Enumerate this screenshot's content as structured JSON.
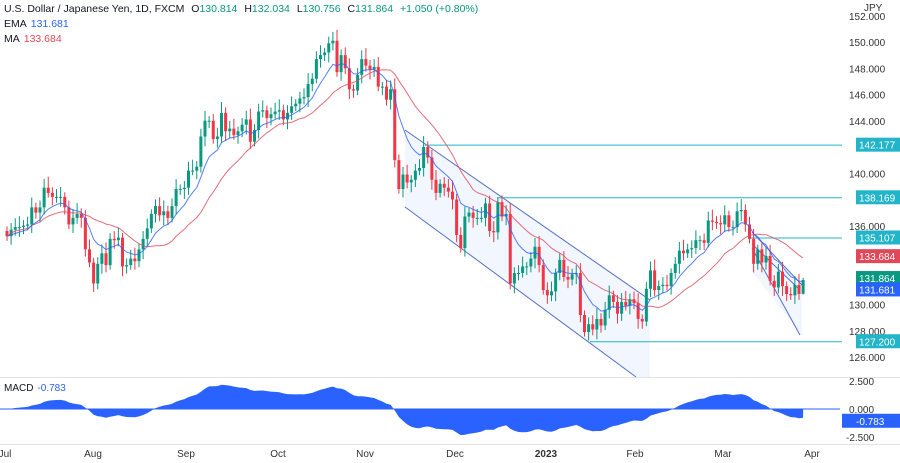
{
  "header": {
    "symbol": "U.S. Dollar / Japanese Yen, 1D, FXCM",
    "open_label": "O",
    "open": "130.814",
    "high_label": "H",
    "high": "132.034",
    "low_label": "L",
    "low": "130.756",
    "close_label": "C",
    "close": "131.864",
    "change": "+1.050 (+0.80%)",
    "ema_label": "EMA",
    "ema_value": "131.681",
    "ma_label": "MA",
    "ma_value": "133.684"
  },
  "macd": {
    "label": "MACD",
    "value": "-0.783"
  },
  "axis": {
    "currency": "JPY",
    "price_ticks": [
      "152.000",
      "150.000",
      "148.000",
      "146.000",
      "144.000",
      "140.000",
      "136.000",
      "130.000",
      "128.000",
      "126.000"
    ],
    "macd_ticks": [
      "2.500",
      "0.000",
      "-2.500"
    ],
    "time_labels": [
      "Jul",
      "Aug",
      "Sep",
      "Oct",
      "Nov",
      "Dec",
      "2023",
      "Feb",
      "Mar",
      "Apr"
    ]
  },
  "tags": {
    "level_1": "142.177",
    "level_2": "138.169",
    "level_3": "135.107",
    "ma": "133.684",
    "close": "131.864",
    "ema": "131.681",
    "level_4": "127.200",
    "macd": "-0.783"
  },
  "colors": {
    "up": "#089981",
    "down": "#f23645",
    "ema": "#2962ff",
    "ma": "#e0485a",
    "level": "#22b5c9",
    "channel": "#5470c6",
    "macd": "#2962ff"
  },
  "chart_data": {
    "type": "candlestick",
    "title": "U.S. Dollar / Japanese Yen, 1D, FXCM",
    "ylabel": "JPY",
    "ylim": [
      125,
      152
    ],
    "horizontal_levels": [
      142.177,
      138.169,
      135.107,
      127.2
    ],
    "last_bar": {
      "open": 130.814,
      "high": 132.034,
      "low": 130.756,
      "close": 131.864
    },
    "closes": [
      135.2,
      135.7,
      135.9,
      135.9,
      136.0,
      136.1,
      137.4,
      137.0,
      137.4,
      138.9,
      138.5,
      138.2,
      138.2,
      138.2,
      137.4,
      136.1,
      136.6,
      136.9,
      136.6,
      134.2,
      133.2,
      131.6,
      133.1,
      133.9,
      133.0,
      135.0,
      134.9,
      135.1,
      132.9,
      133.0,
      133.5,
      133.3,
      134.2,
      135.0,
      135.8,
      136.9,
      137.5,
      136.8,
      137.1,
      136.6,
      137.5,
      138.8,
      138.8,
      138.9,
      140.2,
      140.2,
      140.5,
      142.8,
      144.0,
      144.0,
      142.6,
      142.8,
      144.6,
      143.2,
      143.4,
      142.9,
      143.2,
      143.7,
      144.1,
      142.4,
      143.3,
      144.7,
      144.8,
      144.2,
      144.5,
      144.7,
      144.8,
      144.1,
      144.6,
      145.1,
      145.3,
      145.7,
      145.8,
      146.8,
      147.2,
      148.7,
      149.0,
      149.2,
      149.9,
      150.1,
      147.7,
      149.0,
      148.0,
      146.4,
      146.3,
      147.5,
      148.7,
      148.2,
      147.9,
      148.1,
      146.6,
      146.6,
      145.6,
      146.4,
      141.0,
      138.8,
      139.9,
      139.3,
      139.5,
      140.2,
      140.4,
      142.0,
      141.2,
      139.5,
      138.5,
      139.2,
      138.9,
      138.6,
      138.0,
      135.3,
      134.3,
      136.7,
      137.0,
      136.6,
      136.6,
      136.6,
      137.7,
      135.6,
      135.5,
      137.8,
      136.7,
      136.9,
      131.6,
      132.4,
      132.4,
      132.9,
      132.9,
      133.5,
      134.4,
      133.0,
      131.1,
      130.7,
      131.0,
      132.4,
      133.4,
      132.1,
      131.9,
      132.3,
      132.4,
      129.2,
      127.9,
      128.5,
      128.1,
      128.9,
      128.4,
      129.6,
      130.7,
      130.2,
      129.3,
      130.2,
      129.9,
      130.4,
      130.1,
      128.9,
      128.7,
      131.2,
      132.6,
      131.1,
      131.4,
      131.5,
      131.4,
      132.4,
      133.1,
      134.1,
      133.9,
      134.2,
      134.3,
      134.9,
      134.9,
      134.7,
      136.4,
      136.3,
      136.2,
      136.1,
      136.8,
      135.9,
      135.9,
      137.1,
      137.2,
      136.1,
      135.0,
      133.1,
      134.2,
      133.2,
      133.7,
      131.8,
      131.3,
      132.5,
      131.4,
      130.8,
      130.7,
      131.5,
      130.8,
      131.864
    ],
    "first_open": 135.6,
    "indicators": {
      "ema_period": 9,
      "ma_period": 20,
      "macd": [
        12,
        26
      ]
    }
  }
}
